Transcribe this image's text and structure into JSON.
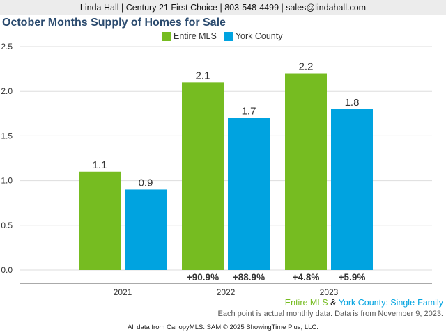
{
  "header": {
    "contact": "Linda Hall | Century 21 First Choice | 803-548-4499 | sales@lindahall.com"
  },
  "colors": {
    "entire_mls": "#76bc21",
    "york_county": "#00a3e0"
  },
  "chart_data": {
    "type": "bar",
    "title": "October Months Supply of Homes for Sale",
    "categories": [
      "2021",
      "2022",
      "2023"
    ],
    "series": [
      {
        "name": "Entire MLS",
        "values": [
          1.1,
          2.1,
          2.2
        ],
        "labels": [
          "1.1",
          "2.1",
          "2.2"
        ],
        "changes": [
          "",
          "+90.9%",
          "+4.8%"
        ]
      },
      {
        "name": "York County",
        "values": [
          0.9,
          1.7,
          1.8
        ],
        "labels": [
          "0.9",
          "1.7",
          "1.8"
        ],
        "changes": [
          "",
          "+88.9%",
          "+5.9%"
        ]
      }
    ],
    "yticks": [
      "0.0",
      "0.5",
      "1.0",
      "1.5",
      "2.0",
      "2.5"
    ],
    "ylim": [
      0,
      2.5
    ],
    "grid": true,
    "legend": "top-center"
  },
  "footer": {
    "series_entire": "Entire MLS",
    "series_amp": " & ",
    "series_york": "York County",
    "series_suffix": ": Single-Family",
    "note": "Each point is actual monthly data. Data is from November 9, 2023.",
    "source": "All data from CanopyMLS. SAM © 2025 ShowingTime Plus, LLC."
  }
}
